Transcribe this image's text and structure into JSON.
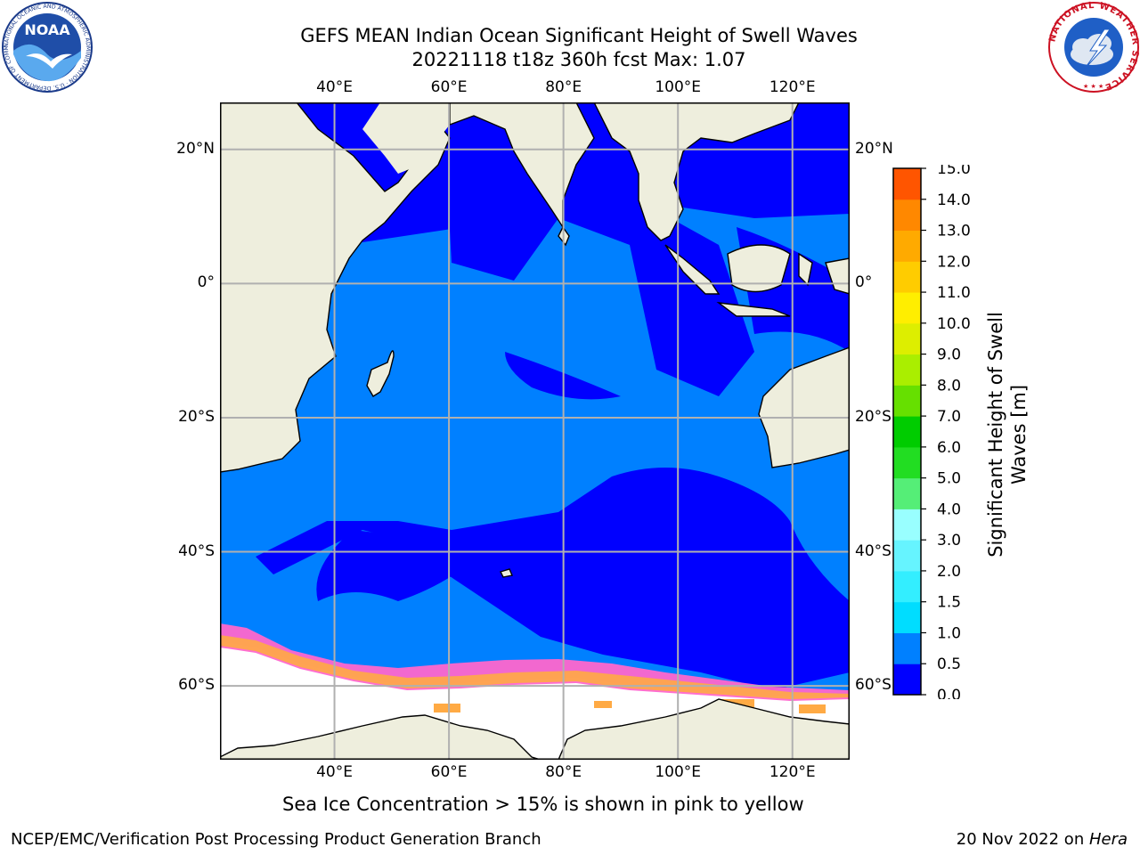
{
  "title": {
    "line1": "GEFS MEAN Indian Ocean Significant Height of Swell Waves",
    "line2": "20221118 t18z 360h fcst   Max: 1.07"
  },
  "logos": {
    "noaa_text": "NOAA",
    "noaa_ring": "NATIONAL OCEANIC AND ATMOSPHERIC ADMINISTRATION · U.S. DEPARTMENT OF COMMERCE",
    "nws_ring": "NATIONAL WEATHER SERVICE"
  },
  "map": {
    "lon_labels": [
      "40°E",
      "60°E",
      "80°E",
      "100°E",
      "120°E"
    ],
    "lon_values": [
      40,
      60,
      80,
      100,
      120
    ],
    "lat_labels": [
      "20°N",
      "0°",
      "20°S",
      "40°S",
      "60°S"
    ],
    "lat_values": [
      20,
      0,
      -20,
      -40,
      -60
    ],
    "lon_range": [
      20,
      130
    ],
    "lat_range": [
      -71,
      27
    ],
    "colors": {
      "land": "#eeeedd",
      "ocean_low": "#0000ff",
      "ocean_mid": "#0080ff",
      "sea_ice": "#ffffff",
      "ice_edge_pink": "#ff66cc",
      "ice_edge_orange": "#ffaa44",
      "grid": "#b0b0b0"
    }
  },
  "colorbar": {
    "label_line1": "Significant Height of Swell",
    "label_line2": "Waves [m]",
    "ticks": [
      "0.0",
      "0.5",
      "1.0",
      "1.5",
      "2.0",
      "3.0",
      "4.0",
      "5.0",
      "6.0",
      "7.0",
      "8.0",
      "9.0",
      "10.0",
      "11.0",
      "12.0",
      "13.0",
      "14.0",
      "15.0"
    ],
    "colors": [
      "#0000ff",
      "#0080ff",
      "#00ddff",
      "#33eeff",
      "#66f4ff",
      "#99ffff",
      "#55ee77",
      "#22dd22",
      "#00cc00",
      "#66e000",
      "#aaee00",
      "#ddee00",
      "#ffee00",
      "#ffcc00",
      "#ffaa00",
      "#ff8800",
      "#ff5500",
      "#ff2200",
      "#ff0000"
    ]
  },
  "caption": "Sea Ice Concentration > 15% is shown in pink to yellow",
  "footer": {
    "left": "NCEP/EMC/Verification Post Processing Product Generation Branch",
    "right_date": "20 Nov 2022 on ",
    "right_host": "Hera"
  }
}
